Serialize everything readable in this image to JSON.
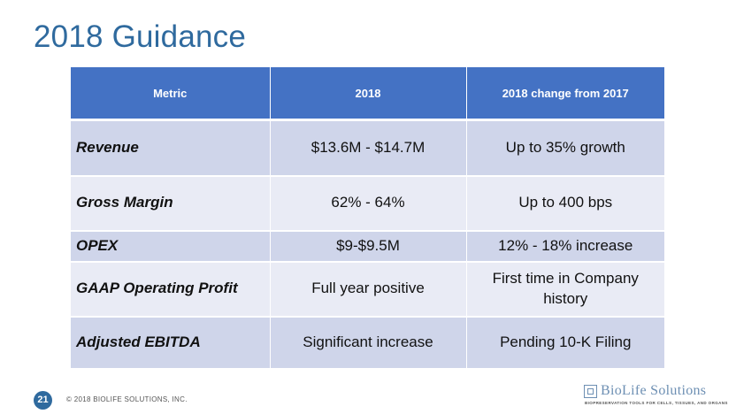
{
  "slide": {
    "title": "2018 Guidance",
    "page_number": "21",
    "copyright": "© 2018 BIOLIFE SOLUTIONS, INC."
  },
  "table": {
    "headers": [
      "Metric",
      "2018",
      "2018 change from 2017"
    ],
    "rows": [
      {
        "metric": "Revenue",
        "value_2018": "$13.6M - $14.7M",
        "change": "Up to 35% growth"
      },
      {
        "metric": "Gross Margin",
        "value_2018": "62% - 64%",
        "change": "Up to 400 bps"
      },
      {
        "metric": "OPEX",
        "value_2018": "$9-$9.5M",
        "change": "12% - 18% increase"
      },
      {
        "metric": "GAAP Operating Profit",
        "value_2018": "Full year positive",
        "change": "First time in Company history"
      },
      {
        "metric": "Adjusted EBITDA",
        "value_2018": "Significant increase",
        "change": "Pending 10-K Filing"
      }
    ]
  },
  "logo": {
    "name": "BioLife Solutions",
    "tagline": "BIOPRESERVATION TOOLS FOR CELLS, TISSUES, AND ORGANS"
  },
  "colors": {
    "title": "#2f6a9e",
    "header_bg": "#4472c4",
    "row_dark": "#cfd5ea",
    "row_light": "#e9ebf5"
  }
}
